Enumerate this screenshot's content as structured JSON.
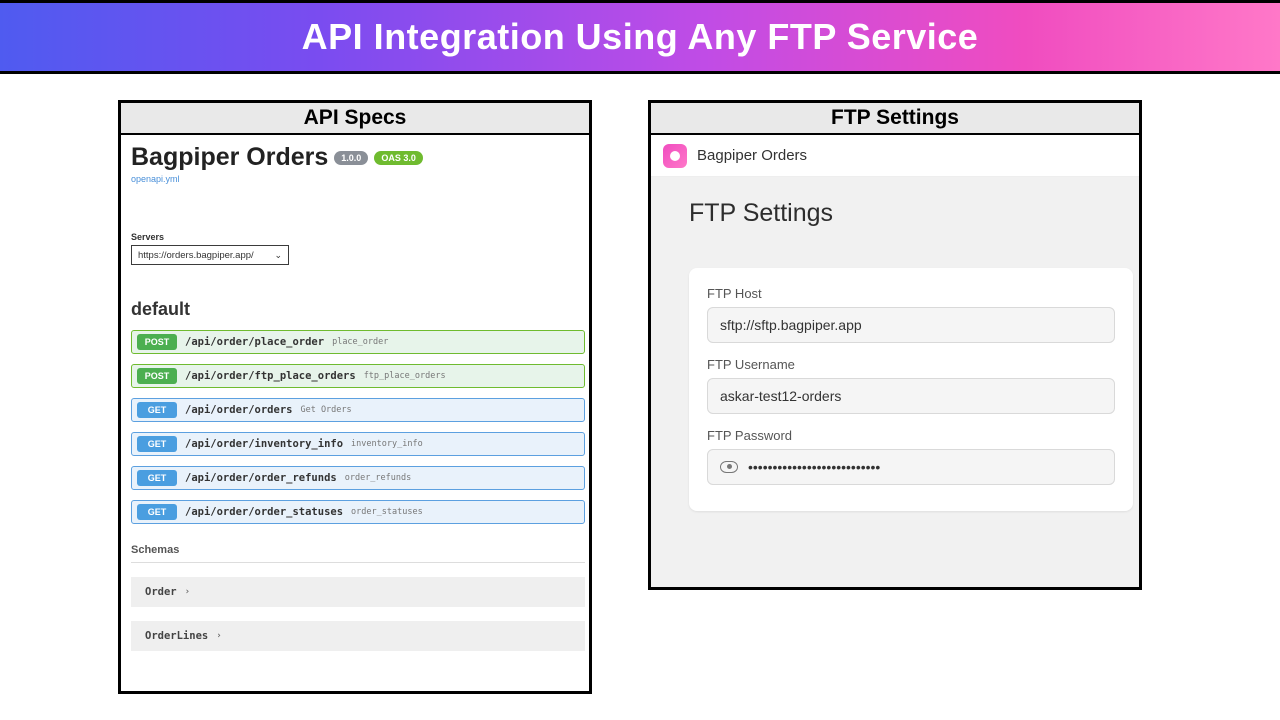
{
  "banner_title": "API Integration Using Any FTP Service",
  "colors": {
    "gradient_start": "#4f5bf0",
    "gradient_end": "#ff78c8",
    "post_method": "#4caf50",
    "get_method": "#4a9ee0",
    "post_row_bg": "#e7f4ea",
    "get_row_bg": "#e9f2fb",
    "badge_grey": "#8a8f97",
    "badge_green": "#6fbb2f"
  },
  "left": {
    "panel_title": "API Specs",
    "api_title": "Bagpiper Orders",
    "version_badge": "1.0.0",
    "oas_badge": "OAS 3.0",
    "spec_file": "openapi.yml",
    "servers_label": "Servers",
    "server_url": "https://orders.bagpiper.app/",
    "section": "default",
    "endpoints": [
      {
        "method": "POST",
        "path": "/api/order/place_order",
        "op": "place_order"
      },
      {
        "method": "POST",
        "path": "/api/order/ftp_place_orders",
        "op": "ftp_place_orders"
      },
      {
        "method": "GET",
        "path": "/api/order/orders",
        "op": "Get Orders"
      },
      {
        "method": "GET",
        "path": "/api/order/inventory_info",
        "op": "inventory_info"
      },
      {
        "method": "GET",
        "path": "/api/order/order_refunds",
        "op": "order_refunds"
      },
      {
        "method": "GET",
        "path": "/api/order/order_statuses",
        "op": "order_statuses"
      }
    ],
    "schemas_label": "Schemas",
    "schemas": [
      "Order",
      "OrderLines"
    ]
  },
  "right": {
    "panel_title": "FTP Settings",
    "app_name": "Bagpiper Orders",
    "heading": "FTP Settings",
    "host_label": "FTP Host",
    "host_value": "sftp://sftp.bagpiper.app",
    "user_label": "FTP Username",
    "user_value": "askar-test12-orders",
    "pass_label": "FTP Password",
    "pass_value": "•••••••••••••••••••••••••••"
  }
}
